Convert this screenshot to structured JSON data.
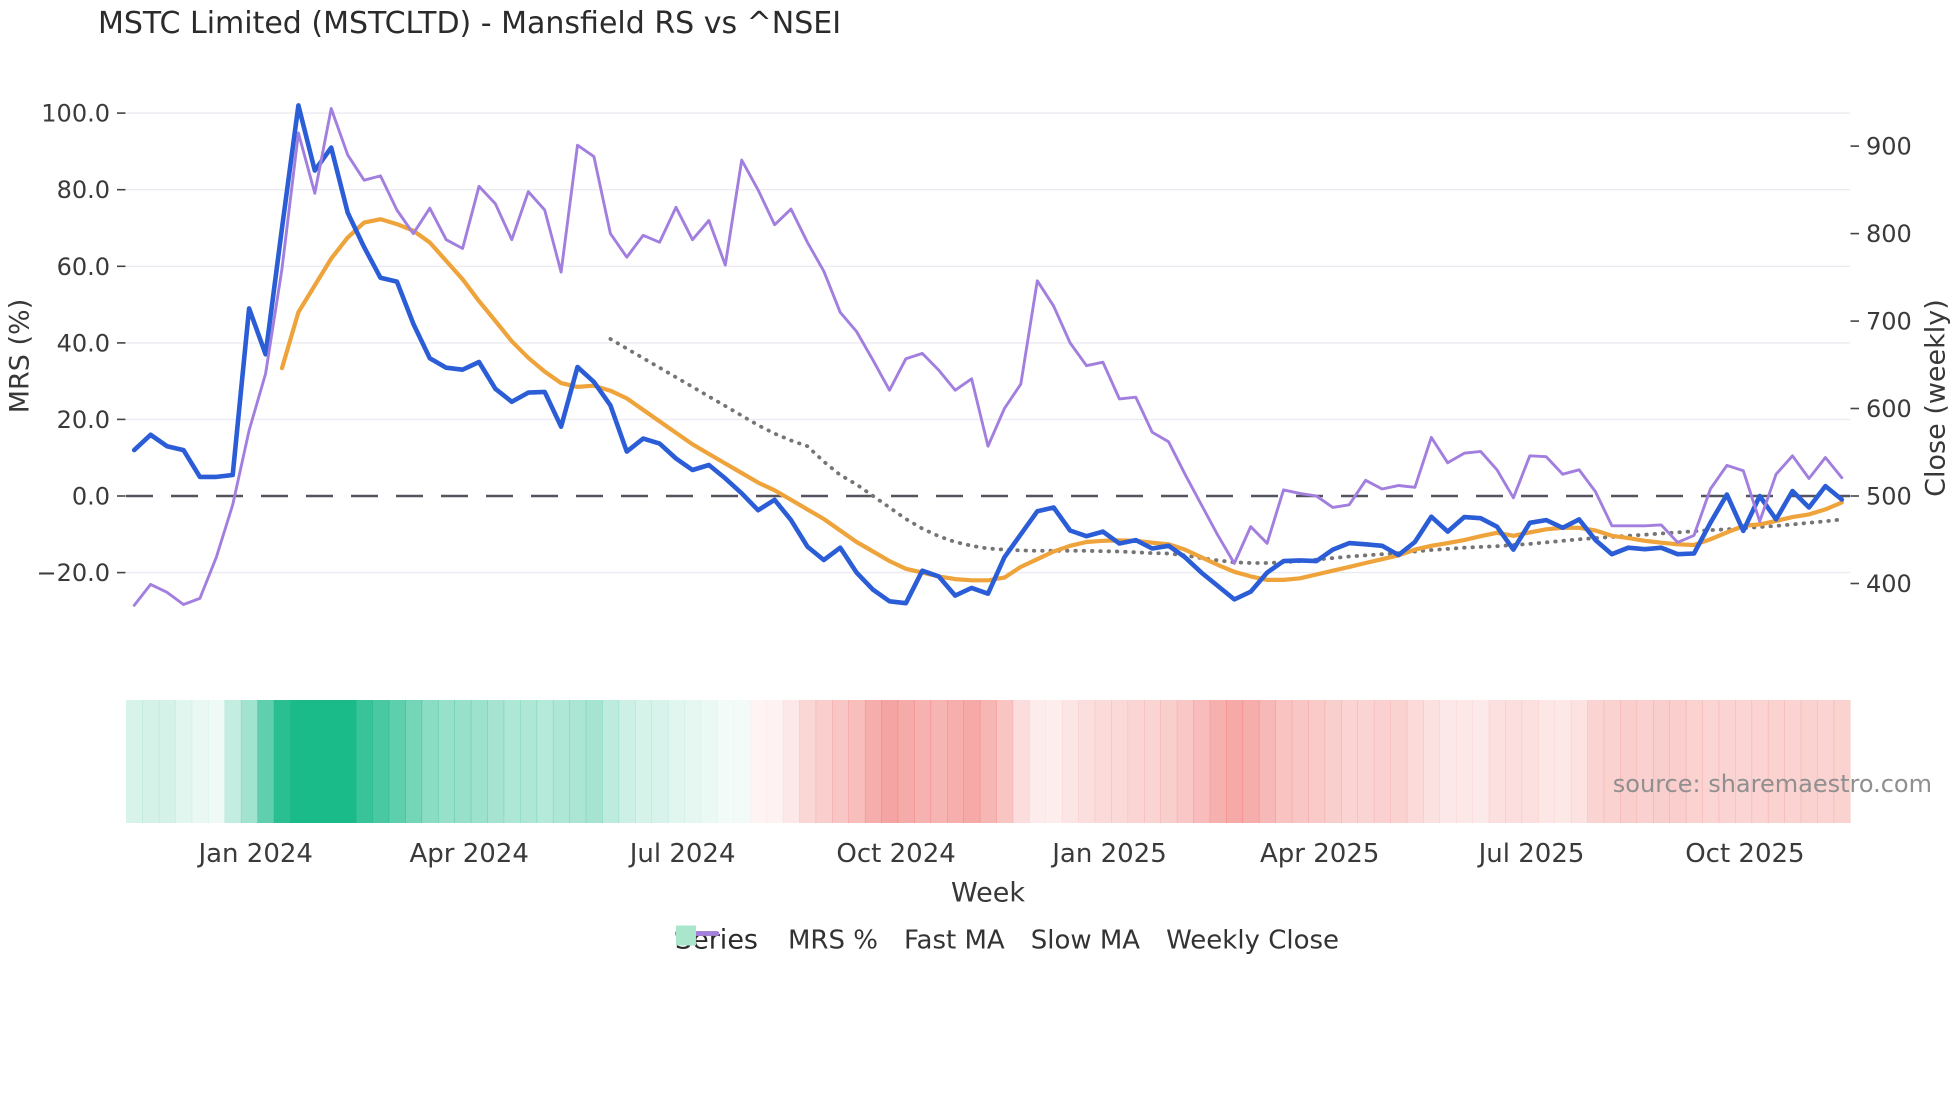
{
  "title": "MSTC Limited (MSTCLTD) - Mansfield RS vs ^NSEI",
  "source": "source: sharemaestro.com",
  "chart_data": {
    "type": "line",
    "title": "MSTC Limited (MSTCLTD) - Mansfield RS vs ^NSEI",
    "weeks": 105,
    "grid": "horizontal-on",
    "legend_position": "bottom-center",
    "x_axis": {
      "label": "Week",
      "ticks": [
        {
          "label": "Jan 2024",
          "i": 7.4
        },
        {
          "label": "Apr 2024",
          "i": 20.4
        },
        {
          "label": "Jul 2024",
          "i": 33.4
        },
        {
          "label": "Oct 2024",
          "i": 46.4
        },
        {
          "label": "Jan 2025",
          "i": 59.4
        },
        {
          "label": "Apr 2025",
          "i": 72.2
        },
        {
          "label": "Jul 2025",
          "i": 85.1
        },
        {
          "label": "Oct 2025",
          "i": 98.1
        }
      ]
    },
    "y_left": {
      "label": "MRS (%)",
      "range": [
        -32.9,
        107.6
      ],
      "tick_values": [
        100,
        80,
        60,
        40,
        20,
        0,
        -20
      ],
      "tick_labels": [
        "100.0",
        "80.0",
        "60.0",
        "40.0",
        "20.0",
        "0.0",
        "−20.0"
      ],
      "zero_line_dashed": true
    },
    "y_right": {
      "label": "Close (weekly)",
      "range": [
        356,
        971
      ],
      "tick_values": [
        900,
        800,
        700,
        600,
        500,
        400
      ],
      "tick_labels": [
        "900",
        "800",
        "700",
        "600",
        "500",
        "400"
      ]
    },
    "colors": {
      "mrs": "#2b5dd7",
      "fast_ma": "#eea33b",
      "slow_ma": "#757575",
      "weekly_close": "#a27fdf",
      "zero_line": "#53545f",
      "gridline": "#ebebf2",
      "band_green": "#1aba89",
      "band_red": "#ee6e6a",
      "band_legend_swatch": "#a9e6cb"
    },
    "series": [
      {
        "name": "MRS %",
        "axis": "left",
        "style": "solid",
        "color": "#2b5dd7",
        "values": [
          12,
          16,
          13,
          12,
          5,
          5,
          5.5,
          49,
          37,
          70,
          102,
          85,
          91,
          74,
          65,
          57,
          56,
          45,
          36,
          33.5,
          33,
          35,
          28,
          24.6,
          27,
          27.2,
          18.1,
          33.7,
          29.8,
          23.7,
          11.6,
          15,
          13.7,
          9.8,
          6.8,
          8.1,
          4.6,
          0.7,
          -3.7,
          -1,
          -6.3,
          -13.2,
          -16.7,
          -13.5,
          -20,
          -24.5,
          -27.5,
          -28,
          -19.5,
          -21,
          -26,
          -24,
          -25.5,
          -16,
          -10,
          -4,
          -3,
          -9,
          -10.5,
          -9.3,
          -12.4,
          -11.5,
          -13.7,
          -13,
          -16,
          -20,
          -23.5,
          -27,
          -25,
          -20,
          -17,
          -16.8,
          -17,
          -14,
          -12.3,
          -12.6,
          -13,
          -15.4,
          -12,
          -5.4,
          -9.3,
          -5.5,
          -5.8,
          -8,
          -14,
          -7,
          -6.3,
          -8.3,
          -6.1,
          -11.5,
          -15.2,
          -13.5,
          -13.9,
          -13.5,
          -15.2,
          -15,
          -7,
          0.4,
          -9.1,
          0,
          -6.1,
          1.3,
          -3,
          2.6,
          -0.9
        ]
      },
      {
        "name": "Fast MA",
        "axis": "left",
        "style": "solid",
        "color": "#eea33b",
        "values": [
          null,
          null,
          null,
          null,
          null,
          null,
          null,
          null,
          null,
          33.4,
          48,
          55,
          62,
          67.5,
          71.4,
          72.3,
          71,
          69.3,
          66.2,
          61.4,
          56.6,
          50.9,
          45.7,
          40.4,
          36.1,
          32.5,
          29.5,
          28.5,
          28.8,
          27.5,
          25.5,
          22.5,
          19.5,
          16.5,
          13.5,
          11,
          8.5,
          6,
          3.5,
          1.5,
          -1,
          -3.5,
          -6,
          -9,
          -12,
          -14.5,
          -17,
          -19,
          -20,
          -21,
          -21.7,
          -22,
          -22,
          -21.3,
          -18.5,
          -16.5,
          -14.5,
          -13,
          -12,
          -11.7,
          -11.6,
          -11.7,
          -12.2,
          -12.6,
          -14,
          -16,
          -18,
          -19.8,
          -21,
          -21.9,
          -21.9,
          -21.5,
          -20.5,
          -19.5,
          -18.5,
          -17.5,
          -16.5,
          -15.5,
          -14,
          -13,
          -12.3,
          -11.5,
          -10.5,
          -9.6,
          -10.4,
          -9.5,
          -8.7,
          -8.3,
          -8.3,
          -9,
          -10.4,
          -11,
          -11.7,
          -12.2,
          -12.6,
          -12.8,
          -11.3,
          -9.5,
          -7.8,
          -7.4,
          -6.5,
          -5.5,
          -4.8,
          -3.5,
          -1.7
        ]
      },
      {
        "name": "Slow MA",
        "axis": "left",
        "style": "dotted",
        "color": "#757575",
        "values": [
          null,
          null,
          null,
          null,
          null,
          null,
          null,
          null,
          null,
          null,
          null,
          null,
          null,
          null,
          null,
          null,
          null,
          null,
          null,
          null,
          null,
          null,
          null,
          null,
          null,
          null,
          null,
          null,
          null,
          41,
          38.5,
          36,
          33.5,
          31,
          28.5,
          26,
          23.5,
          21,
          18.5,
          16.3,
          14.5,
          13,
          9,
          5.5,
          3,
          0,
          -3,
          -6,
          -8.5,
          -10.5,
          -12,
          -13,
          -13.7,
          -14,
          -14.2,
          -14.3,
          -14.3,
          -14.3,
          -14.3,
          -14.4,
          -14.5,
          -14.7,
          -14.9,
          -15,
          -15.5,
          -16.2,
          -16.8,
          -17.3,
          -17.5,
          -17.5,
          -17.3,
          -17,
          -16.6,
          -16.2,
          -15.8,
          -15.5,
          -15.2,
          -14.9,
          -14.5,
          -14.1,
          -13.8,
          -13.5,
          -13.3,
          -13.1,
          -12.8,
          -12.5,
          -12.1,
          -11.7,
          -11.3,
          -11,
          -10.7,
          -10.4,
          -10.1,
          -9.8,
          -9.5,
          -9.2,
          -8.9,
          -8.7,
          -8.4,
          -8.1,
          -7.8,
          -7.4,
          -7,
          -6.6,
          -6.1
        ]
      },
      {
        "name": "Weekly Close",
        "axis": "right",
        "style": "solid",
        "color": "#a27fdf",
        "values": [
          375,
          399,
          390,
          376,
          383,
          430,
          490,
          575,
          640,
          760,
          915,
          846,
          943,
          890,
          861,
          866,
          827,
          800,
          829,
          793,
          783,
          854,
          834,
          793,
          848,
          827,
          756,
          901,
          888,
          800,
          773,
          798,
          790,
          830,
          793,
          815,
          764,
          884,
          850,
          810,
          828,
          790,
          757,
          710,
          688,
          655,
          621,
          657,
          663,
          644,
          621,
          634,
          557,
          600,
          628,
          746,
          717,
          675,
          649,
          653,
          611,
          613,
          573,
          562,
          525,
          490,
          455,
          423,
          465,
          446,
          507,
          503,
          500,
          487,
          490,
          518,
          508,
          512,
          510,
          567,
          538,
          549,
          551,
          530,
          498,
          546,
          545,
          525,
          530,
          505,
          466,
          466,
          466,
          467,
          447,
          455,
          508,
          535,
          529,
          471,
          525,
          546,
          520,
          544,
          521
        ]
      }
    ],
    "band": {
      "name": "relative-strength-heat",
      "description": "green = positive MRS intensity, red = negative MRS intensity",
      "values": [
        13.3,
        13.7,
        13.7,
        10,
        7.3,
        5.2,
        19.8,
        30.5,
        52,
        69.7,
        85.7,
        92.7,
        83.3,
        76.7,
        65.3,
        59.3,
        52.7,
        45.7,
        38.2,
        34.2,
        33.8,
        32,
        29.2,
        26.5,
        26.3,
        24.1,
        26.3,
        27.2,
        29.1,
        21.7,
        16.8,
        13.4,
        12.8,
        10.1,
        8.2,
        6.5,
        4.5,
        0.5,
        -1.3,
        -3.7,
        -6.8,
        -12.1,
        -14.5,
        -16.7,
        -19.3,
        -24,
        -26.7,
        -25,
        -22.8,
        -22.2,
        -23.7,
        -25.2,
        -21.8,
        -17.2,
        -10,
        -5.7,
        -5.3,
        -7.5,
        -9.6,
        -10.7,
        -11.1,
        -12.5,
        -12.7,
        -14.2,
        -16.3,
        -19.8,
        -23.5,
        -25.2,
        -24,
        -20.7,
        -17.9,
        -16.9,
        -15.9,
        -14.4,
        -13,
        -12.6,
        -13.7,
        -13.5,
        -10.9,
        -8.9,
        -6.7,
        -6.9,
        -6.4,
        -9.3,
        -9.7,
        -9.1,
        -7.2,
        -6.9,
        -8.6,
        -12.6,
        -13.4,
        -14.2,
        -13.6,
        -14.2,
        -14.6,
        -13.5,
        -12.5,
        -13,
        -12.5,
        -13,
        -13.5,
        -13,
        -13.5,
        -13,
        -13.5
      ]
    },
    "legend": {
      "title": "Series",
      "items": [
        {
          "label": "MRS %",
          "swatch": "line",
          "color": "#2b5dd7"
        },
        {
          "label": "Fast MA",
          "swatch": "line",
          "color": "#eea33b"
        },
        {
          "label": "Slow MA",
          "swatch": "dotted-line",
          "color": "#757575"
        },
        {
          "label": "Weekly Close",
          "swatch": "line",
          "color": "#a27fdf"
        },
        {
          "label": "",
          "swatch": "square",
          "color": "#a9e6cb"
        }
      ]
    }
  }
}
